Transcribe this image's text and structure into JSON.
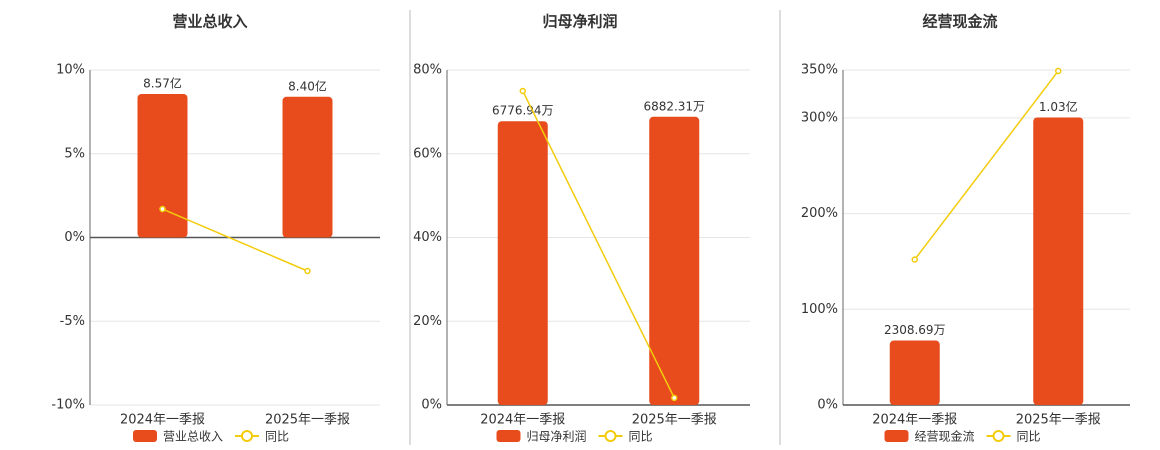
{
  "chart_data": [
    {
      "type": "combo",
      "title": "营业总收入",
      "categories": [
        "2024年一季报",
        "2025年一季报"
      ],
      "series": [
        {
          "name": "营业总收入",
          "type": "bar",
          "axis": "y2",
          "color": "#e84c1c",
          "values": [
            857000000,
            840000000
          ],
          "value_labels": [
            "8.57亿",
            "8.40亿"
          ]
        },
        {
          "name": "同比",
          "type": "line",
          "color": "#f2cc0c",
          "values": [
            1.7,
            -2.0
          ]
        }
      ],
      "ylim": [
        -10,
        10
      ],
      "yticks": [
        {
          "value": -10,
          "label": "-10%"
        },
        {
          "value": -5,
          "label": "-5%"
        },
        {
          "value": 0,
          "label": "0%"
        },
        {
          "value": 5,
          "label": "5%"
        },
        {
          "value": 10,
          "label": "10%"
        }
      ],
      "y2lim": [
        -1000000000,
        1000000000
      ],
      "grid": true
    },
    {
      "type": "combo",
      "title": "归母净利润",
      "categories": [
        "2024年一季报",
        "2025年一季报"
      ],
      "series": [
        {
          "name": "归母净利润",
          "type": "bar",
          "axis": "y2",
          "color": "#e84c1c",
          "values": [
            67769400,
            68823100
          ],
          "value_labels": [
            "6776.94万",
            "6882.31万"
          ]
        },
        {
          "name": "同比",
          "type": "line",
          "color": "#f2cc0c",
          "values": [
            75,
            1.7
          ]
        }
      ],
      "ylim": [
        0,
        80
      ],
      "yticks": [
        {
          "value": 0,
          "label": "0%"
        },
        {
          "value": 20,
          "label": "20%"
        },
        {
          "value": 40,
          "label": "40%"
        },
        {
          "value": 60,
          "label": "60%"
        },
        {
          "value": 80,
          "label": "80%"
        }
      ],
      "y2lim": [
        0,
        80000000
      ],
      "grid": true
    },
    {
      "type": "combo",
      "title": "经营现金流",
      "categories": [
        "2024年一季报",
        "2025年一季报"
      ],
      "series": [
        {
          "name": "经营现金流",
          "type": "bar",
          "axis": "y2",
          "color": "#e84c1c",
          "values": [
            23086900,
            103000000
          ],
          "value_labels": [
            "2308.69万",
            "1.03亿"
          ]
        },
        {
          "name": "同比",
          "type": "line",
          "color": "#f2cc0c",
          "values": [
            152,
            349
          ]
        }
      ],
      "ylim": [
        0,
        350
      ],
      "yticks": [
        {
          "value": 0,
          "label": "0%"
        },
        {
          "value": 100,
          "label": "100%"
        },
        {
          "value": 200,
          "label": "200%"
        },
        {
          "value": 300,
          "label": "300%"
        },
        {
          "value": 350,
          "label": "350%"
        }
      ],
      "y2lim": [
        0,
        120000000
      ],
      "grid": true
    }
  ]
}
